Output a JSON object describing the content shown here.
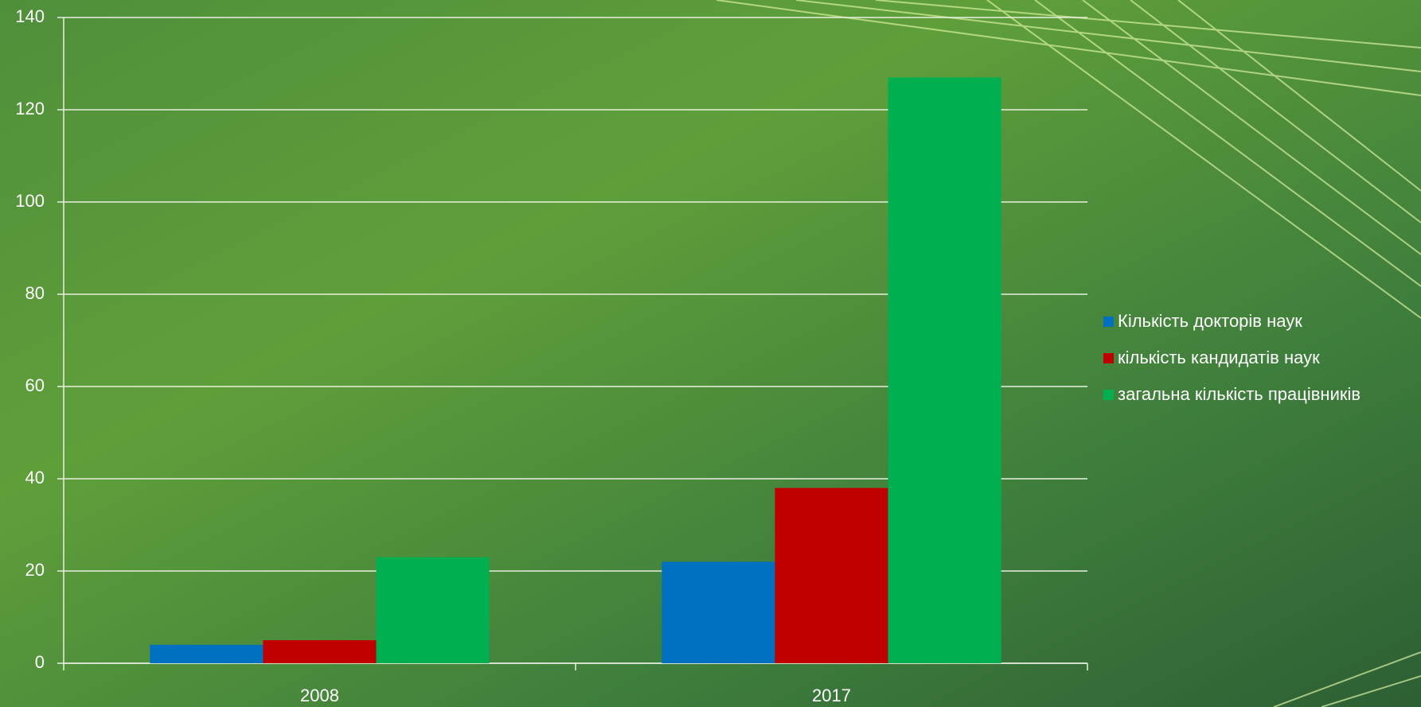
{
  "chart_data": {
    "type": "bar",
    "categories": [
      "2008",
      "2017"
    ],
    "series": [
      {
        "name": "Кількість докторів наук",
        "color": "#0070c0",
        "values": [
          4,
          22
        ]
      },
      {
        "name": "кількість кандидатів наук",
        "color": "#c00000",
        "values": [
          5,
          38
        ]
      },
      {
        "name": "загальна кількість працівників",
        "color": "#00b050",
        "values": [
          23,
          127
        ]
      }
    ],
    "ylim": [
      0,
      140
    ],
    "yticks": [
      0,
      20,
      40,
      60,
      80,
      100,
      120,
      140
    ],
    "grid": true,
    "legend": "right"
  }
}
